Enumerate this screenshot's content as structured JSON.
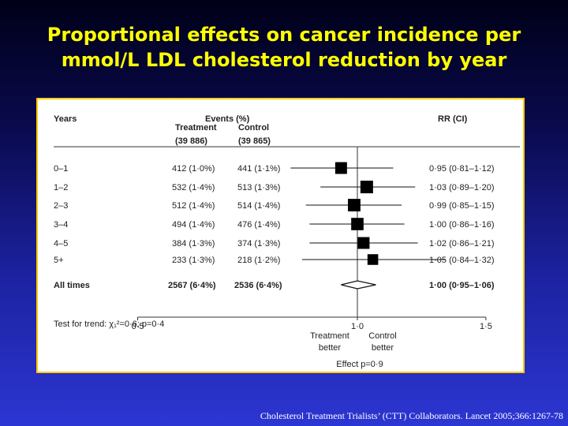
{
  "slide": {
    "title_line1": "Proportional effects on cancer incidence per",
    "title_line2": "mmol/L LDL cholesterol reduction by year",
    "citation": "Cholesterol Treatment Trialists’ (CTT) Collaborators. Lancet 2005;366:1267-78"
  },
  "table_headers": {
    "years": "Years",
    "events": "Events (%)",
    "treatment": "Treatment",
    "treatment_n": "(39 886)",
    "control": "Control",
    "control_n": "(39 865)",
    "rr": "RR (CI)"
  },
  "chart_data": {
    "type": "forest",
    "x_scale": "log",
    "xlim": [
      0.5,
      1.5
    ],
    "xticks": [
      0.5,
      1.0,
      1.5
    ],
    "xtick_labels": [
      "0·5",
      "1·0",
      "1·5"
    ],
    "reference_line": 1.0,
    "x_left_label_line1": "Treatment",
    "x_left_label_line2": "better",
    "x_right_label_line1": "Control",
    "x_right_label_line2": "better",
    "effect_label": "Effect p=0·9",
    "trend_test": "Test for trend: χ₁²=0·6; p=0·4",
    "rows": [
      {
        "years": "0–1",
        "treatment": "412 (1·0%)",
        "control": "441 (1·1%)",
        "rr_text": "0·95 (0·81–1·12)",
        "rr": 0.95,
        "lo": 0.81,
        "hi": 1.12,
        "weight": 0.85
      },
      {
        "years": "1–2",
        "treatment": "532 (1·4%)",
        "control": "513 (1·3%)",
        "rr_text": "1·03 (0·89–1·20)",
        "rr": 1.03,
        "lo": 0.89,
        "hi": 1.2,
        "weight": 1.0
      },
      {
        "years": "2–3",
        "treatment": "512 (1·4%)",
        "control": "514 (1·4%)",
        "rr_text": "0·99 (0·85–1·15)",
        "rr": 0.99,
        "lo": 0.85,
        "hi": 1.15,
        "weight": 0.98
      },
      {
        "years": "3–4",
        "treatment": "494 (1·4%)",
        "control": "476 (1·4%)",
        "rr_text": "1·00 (0·86–1·16)",
        "rr": 1.0,
        "lo": 0.86,
        "hi": 1.16,
        "weight": 0.95
      },
      {
        "years": "4–5",
        "treatment": "384 (1·3%)",
        "control": "374 (1·3%)",
        "rr_text": "1·02 (0·86–1·21)",
        "rr": 1.02,
        "lo": 0.86,
        "hi": 1.21,
        "weight": 0.85
      },
      {
        "years": "5+",
        "treatment": "233 (1·3%)",
        "control": "218 (1·2%)",
        "rr_text": "1·05 (0·84–1·32)",
        "rr": 1.05,
        "lo": 0.84,
        "hi": 1.32,
        "weight": 0.65
      }
    ],
    "overall": {
      "years": "All times",
      "treatment": "2567 (6·4%)",
      "control": "2536 (6·4%)",
      "rr_text": "1·00 (0·95–1·06)",
      "rr": 1.0,
      "lo": 0.95,
      "hi": 1.06
    }
  }
}
